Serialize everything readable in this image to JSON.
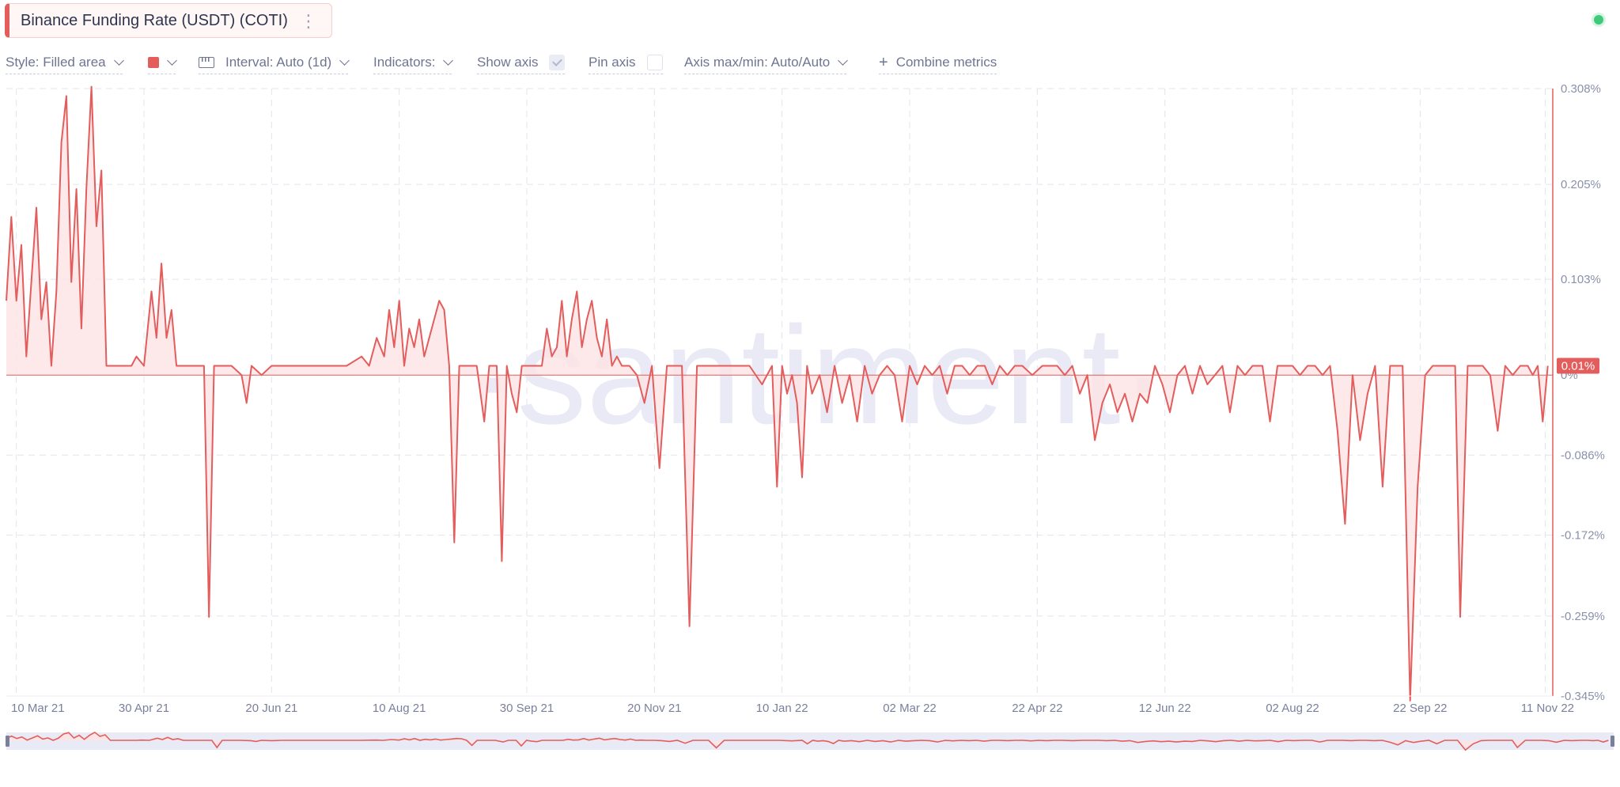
{
  "metric": {
    "title": "Binance Funding Rate (USDT) (COTI)"
  },
  "toolbar": {
    "style_label": "Style: Filled area",
    "interval_label": "Interval: Auto (1d)",
    "indicators_label": "Indicators:",
    "show_axis_label": "Show axis",
    "show_axis_checked": true,
    "pin_axis_label": "Pin axis",
    "pin_axis_checked": false,
    "axis_minmax_label": "Axis max/min: Auto/Auto",
    "combine_label": "Combine metrics"
  },
  "colors": {
    "series": "#e35d5d",
    "fill": "#fde4e4",
    "grid": "#e3e5ee",
    "watermark": "#e9eaf5"
  },
  "watermark": "·santiment·",
  "chart_data": {
    "type": "area",
    "title": "Binance Funding Rate (USDT) (COTI)",
    "xlabel": "",
    "ylabel": "",
    "y_unit": "%",
    "ylim": [
      -0.345,
      0.308
    ],
    "y_ticks": [
      0.308,
      0.205,
      0.103,
      0.0,
      -0.086,
      -0.172,
      -0.259,
      -0.345
    ],
    "y_tick_labels": [
      "0.308%",
      "0.205%",
      "0.103%",
      "0%",
      "-0.086%",
      "-0.172%",
      "-0.259%",
      "-0.345%"
    ],
    "x_range": [
      "2021-03-06",
      "2022-11-14"
    ],
    "x_ticks": [
      "2021-03-10",
      "2021-04-30",
      "2021-06-20",
      "2021-08-10",
      "2021-09-30",
      "2021-11-20",
      "2022-01-10",
      "2022-03-02",
      "2022-04-22",
      "2022-06-12",
      "2022-08-02",
      "2022-09-22",
      "2022-11-11"
    ],
    "x_tick_labels": [
      "10 Mar 21",
      "30 Apr 21",
      "20 Jun 21",
      "10 Aug 21",
      "30 Sep 21",
      "20 Nov 21",
      "10 Jan 22",
      "02 Mar 22",
      "22 Apr 22",
      "12 Jun 22",
      "02 Aug 22",
      "22 Sep 22",
      "11 Nov 22"
    ],
    "last_value_label": "0.01%",
    "grid": true,
    "legend": "none",
    "series": [
      {
        "x": [
          "2021-03-06",
          "2021-03-08",
          "2021-03-10",
          "2021-03-12",
          "2021-03-14",
          "2021-03-16",
          "2021-03-18",
          "2021-03-20",
          "2021-03-22",
          "2021-03-24",
          "2021-03-26",
          "2021-03-28",
          "2021-03-30",
          "2021-04-01",
          "2021-04-03",
          "2021-04-05",
          "2021-04-07",
          "2021-04-09",
          "2021-04-11",
          "2021-04-13",
          "2021-04-15",
          "2021-04-17",
          "2021-04-19",
          "2021-04-21",
          "2021-04-23",
          "2021-04-25",
          "2021-04-27",
          "2021-04-30",
          "2021-05-03",
          "2021-05-05",
          "2021-05-07",
          "2021-05-09",
          "2021-05-11",
          "2021-05-13",
          "2021-05-16",
          "2021-05-20",
          "2021-05-24",
          "2021-05-26",
          "2021-05-28",
          "2021-05-31",
          "2021-06-04",
          "2021-06-08",
          "2021-06-10",
          "2021-06-12",
          "2021-06-16",
          "2021-06-20",
          "2021-06-24",
          "2021-06-28",
          "2021-07-03",
          "2021-07-08",
          "2021-07-14",
          "2021-07-20",
          "2021-07-26",
          "2021-07-29",
          "2021-08-01",
          "2021-08-04",
          "2021-08-06",
          "2021-08-08",
          "2021-08-10",
          "2021-08-12",
          "2021-08-14",
          "2021-08-16",
          "2021-08-18",
          "2021-08-20",
          "2021-08-22",
          "2021-08-24",
          "2021-08-26",
          "2021-08-28",
          "2021-08-30",
          "2021-09-01",
          "2021-09-03",
          "2021-09-05",
          "2021-09-10",
          "2021-09-13",
          "2021-09-15",
          "2021-09-18",
          "2021-09-20",
          "2021-09-22",
          "2021-09-24",
          "2021-09-26",
          "2021-09-28",
          "2021-09-30",
          "2021-10-03",
          "2021-10-06",
          "2021-10-08",
          "2021-10-10",
          "2021-10-12",
          "2021-10-14",
          "2021-10-16",
          "2021-10-18",
          "2021-10-20",
          "2021-10-22",
          "2021-10-24",
          "2021-10-26",
          "2021-10-28",
          "2021-10-30",
          "2021-11-01",
          "2021-11-03",
          "2021-11-05",
          "2021-11-07",
          "2021-11-10",
          "2021-11-13",
          "2021-11-16",
          "2021-11-19",
          "2021-11-22",
          "2021-11-25",
          "2021-11-28",
          "2021-12-01",
          "2021-12-04",
          "2021-12-07",
          "2021-12-10",
          "2021-12-13",
          "2021-12-16",
          "2021-12-19",
          "2021-12-22",
          "2021-12-25",
          "2021-12-28",
          "2022-01-02",
          "2022-01-06",
          "2022-01-08",
          "2022-01-10",
          "2022-01-12",
          "2022-01-14",
          "2022-01-16",
          "2022-01-18",
          "2022-01-20",
          "2022-01-22",
          "2022-01-25",
          "2022-01-28",
          "2022-01-31",
          "2022-02-03",
          "2022-02-06",
          "2022-02-09",
          "2022-02-12",
          "2022-02-15",
          "2022-02-18",
          "2022-02-21",
          "2022-02-24",
          "2022-02-27",
          "2022-03-02",
          "2022-03-05",
          "2022-03-08",
          "2022-03-11",
          "2022-03-14",
          "2022-03-17",
          "2022-03-20",
          "2022-03-23",
          "2022-03-26",
          "2022-03-29",
          "2022-04-01",
          "2022-04-04",
          "2022-04-07",
          "2022-04-10",
          "2022-04-13",
          "2022-04-16",
          "2022-04-20",
          "2022-04-24",
          "2022-04-27",
          "2022-04-30",
          "2022-05-03",
          "2022-05-06",
          "2022-05-09",
          "2022-05-12",
          "2022-05-15",
          "2022-05-18",
          "2022-05-21",
          "2022-05-24",
          "2022-05-27",
          "2022-05-30",
          "2022-06-02",
          "2022-06-05",
          "2022-06-08",
          "2022-06-11",
          "2022-06-14",
          "2022-06-17",
          "2022-06-20",
          "2022-06-23",
          "2022-06-26",
          "2022-06-29",
          "2022-07-02",
          "2022-07-05",
          "2022-07-08",
          "2022-07-11",
          "2022-07-14",
          "2022-07-17",
          "2022-07-21",
          "2022-07-24",
          "2022-07-27",
          "2022-07-30",
          "2022-08-02",
          "2022-08-05",
          "2022-08-08",
          "2022-08-11",
          "2022-08-14",
          "2022-08-17",
          "2022-08-20",
          "2022-08-23",
          "2022-08-26",
          "2022-08-29",
          "2022-09-01",
          "2022-09-04",
          "2022-09-07",
          "2022-09-10",
          "2022-09-13",
          "2022-09-15",
          "2022-09-18",
          "2022-09-21",
          "2022-09-24",
          "2022-09-27",
          "2022-09-30",
          "2022-10-03",
          "2022-10-06",
          "2022-10-08",
          "2022-10-11",
          "2022-10-14",
          "2022-10-17",
          "2022-10-20",
          "2022-10-23",
          "2022-10-26",
          "2022-10-29",
          "2022-11-01",
          "2022-11-04",
          "2022-11-06",
          "2022-11-08",
          "2022-11-10",
          "2022-11-12"
        ],
        "values": [
          0.08,
          0.17,
          0.08,
          0.14,
          0.02,
          0.1,
          0.18,
          0.06,
          0.1,
          0.01,
          0.09,
          0.25,
          0.3,
          0.1,
          0.2,
          0.05,
          0.2,
          0.31,
          0.16,
          0.22,
          0.01,
          0.01,
          0.01,
          0.01,
          0.01,
          0.01,
          0.02,
          0.01,
          0.09,
          0.04,
          0.12,
          0.04,
          0.07,
          0.01,
          0.01,
          0.01,
          0.01,
          -0.26,
          0.01,
          0.01,
          0.01,
          0.0,
          -0.03,
          0.01,
          0.0,
          0.01,
          0.01,
          0.01,
          0.01,
          0.01,
          0.01,
          0.01,
          0.02,
          0.01,
          0.04,
          0.02,
          0.07,
          0.03,
          0.08,
          0.01,
          0.05,
          0.03,
          0.06,
          0.02,
          0.04,
          0.06,
          0.08,
          0.07,
          0.01,
          -0.18,
          0.01,
          0.01,
          0.01,
          -0.05,
          0.01,
          0.01,
          -0.2,
          0.01,
          -0.02,
          -0.04,
          0.01,
          0.01,
          0.01,
          0.01,
          0.05,
          0.02,
          0.03,
          0.08,
          0.02,
          0.06,
          0.09,
          0.03,
          0.06,
          0.08,
          0.04,
          0.02,
          0.06,
          0.01,
          0.02,
          0.01,
          0.01,
          0.0,
          -0.03,
          0.01,
          -0.1,
          0.01,
          0.01,
          0.01,
          -0.27,
          0.01,
          0.01,
          0.01,
          0.01,
          0.01,
          0.01,
          0.01,
          0.01,
          -0.01,
          0.01,
          -0.12,
          0.01,
          -0.02,
          0.0,
          -0.03,
          -0.11,
          0.01,
          -0.02,
          0.0,
          -0.04,
          0.01,
          -0.03,
          0.0,
          -0.05,
          0.01,
          -0.02,
          0.0,
          0.01,
          0.0,
          -0.05,
          0.01,
          -0.01,
          0.01,
          0.0,
          0.01,
          -0.02,
          0.01,
          0.01,
          0.0,
          0.01,
          0.01,
          -0.01,
          0.01,
          0.0,
          0.01,
          0.01,
          0.0,
          0.01,
          0.01,
          0.01,
          0.0,
          0.01,
          -0.02,
          0.0,
          -0.07,
          -0.03,
          -0.01,
          -0.04,
          -0.02,
          -0.05,
          -0.02,
          -0.03,
          0.01,
          -0.01,
          -0.04,
          0.0,
          0.01,
          -0.02,
          0.01,
          -0.01,
          0.0,
          0.01,
          -0.04,
          0.01,
          0.0,
          0.01,
          0.01,
          -0.05,
          0.01,
          0.01,
          0.01,
          0.0,
          0.01,
          0.01,
          0.0,
          0.01,
          -0.06,
          -0.16,
          0.0,
          -0.07,
          -0.02,
          0.01,
          -0.12,
          0.01,
          0.01,
          0.01,
          -0.35,
          -0.12,
          0.0,
          0.01,
          0.01,
          0.01,
          0.01,
          -0.26,
          0.01,
          0.01,
          0.01,
          0.0,
          -0.06,
          0.01,
          0.0,
          0.01,
          0.01,
          0.0,
          0.01,
          -0.05,
          0.01
        ]
      }
    ]
  }
}
